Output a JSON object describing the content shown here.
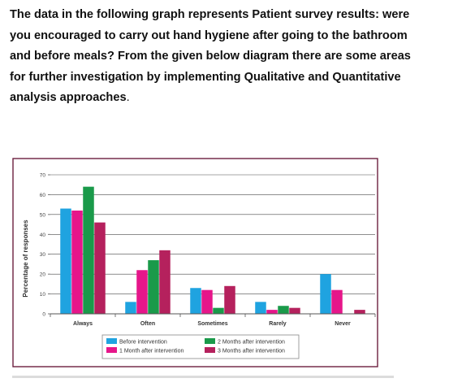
{
  "question": {
    "lines": [
      "The data in the following graph represents Patient survey results: were",
      "you encouraged to carry out hand hygiene after going to the bathroom",
      "and before meals?  From the given below diagram there are some areas",
      "for further investigation by implementing Qualitative and Quantitative",
      "analysis approaches"
    ],
    "period": "."
  },
  "chart_data": {
    "type": "bar",
    "title": "",
    "xlabel": "",
    "ylabel": "Percentage of responses",
    "ylim": [
      0,
      70
    ],
    "yticks": [
      0,
      10,
      20,
      30,
      40,
      50,
      60,
      70
    ],
    "grid": true,
    "legend_position": "bottom",
    "categories": [
      "Always",
      "Often",
      "Sometimes",
      "Rarely",
      "Never"
    ],
    "series": [
      {
        "name": "Before intervention",
        "color": "#1fa3e0",
        "values": [
          53,
          6,
          13,
          6,
          20
        ]
      },
      {
        "name": "1 Month after intervention",
        "color": "#e6168a",
        "values": [
          52,
          22,
          12,
          2,
          12
        ]
      },
      {
        "name": "2 Months after intervention",
        "color": "#1a9a4a",
        "values": [
          64,
          27,
          3,
          4,
          0
        ]
      },
      {
        "name": "3 Months after intervention",
        "color": "#b5215d",
        "values": [
          46,
          32,
          14,
          3,
          2
        ]
      }
    ]
  }
}
